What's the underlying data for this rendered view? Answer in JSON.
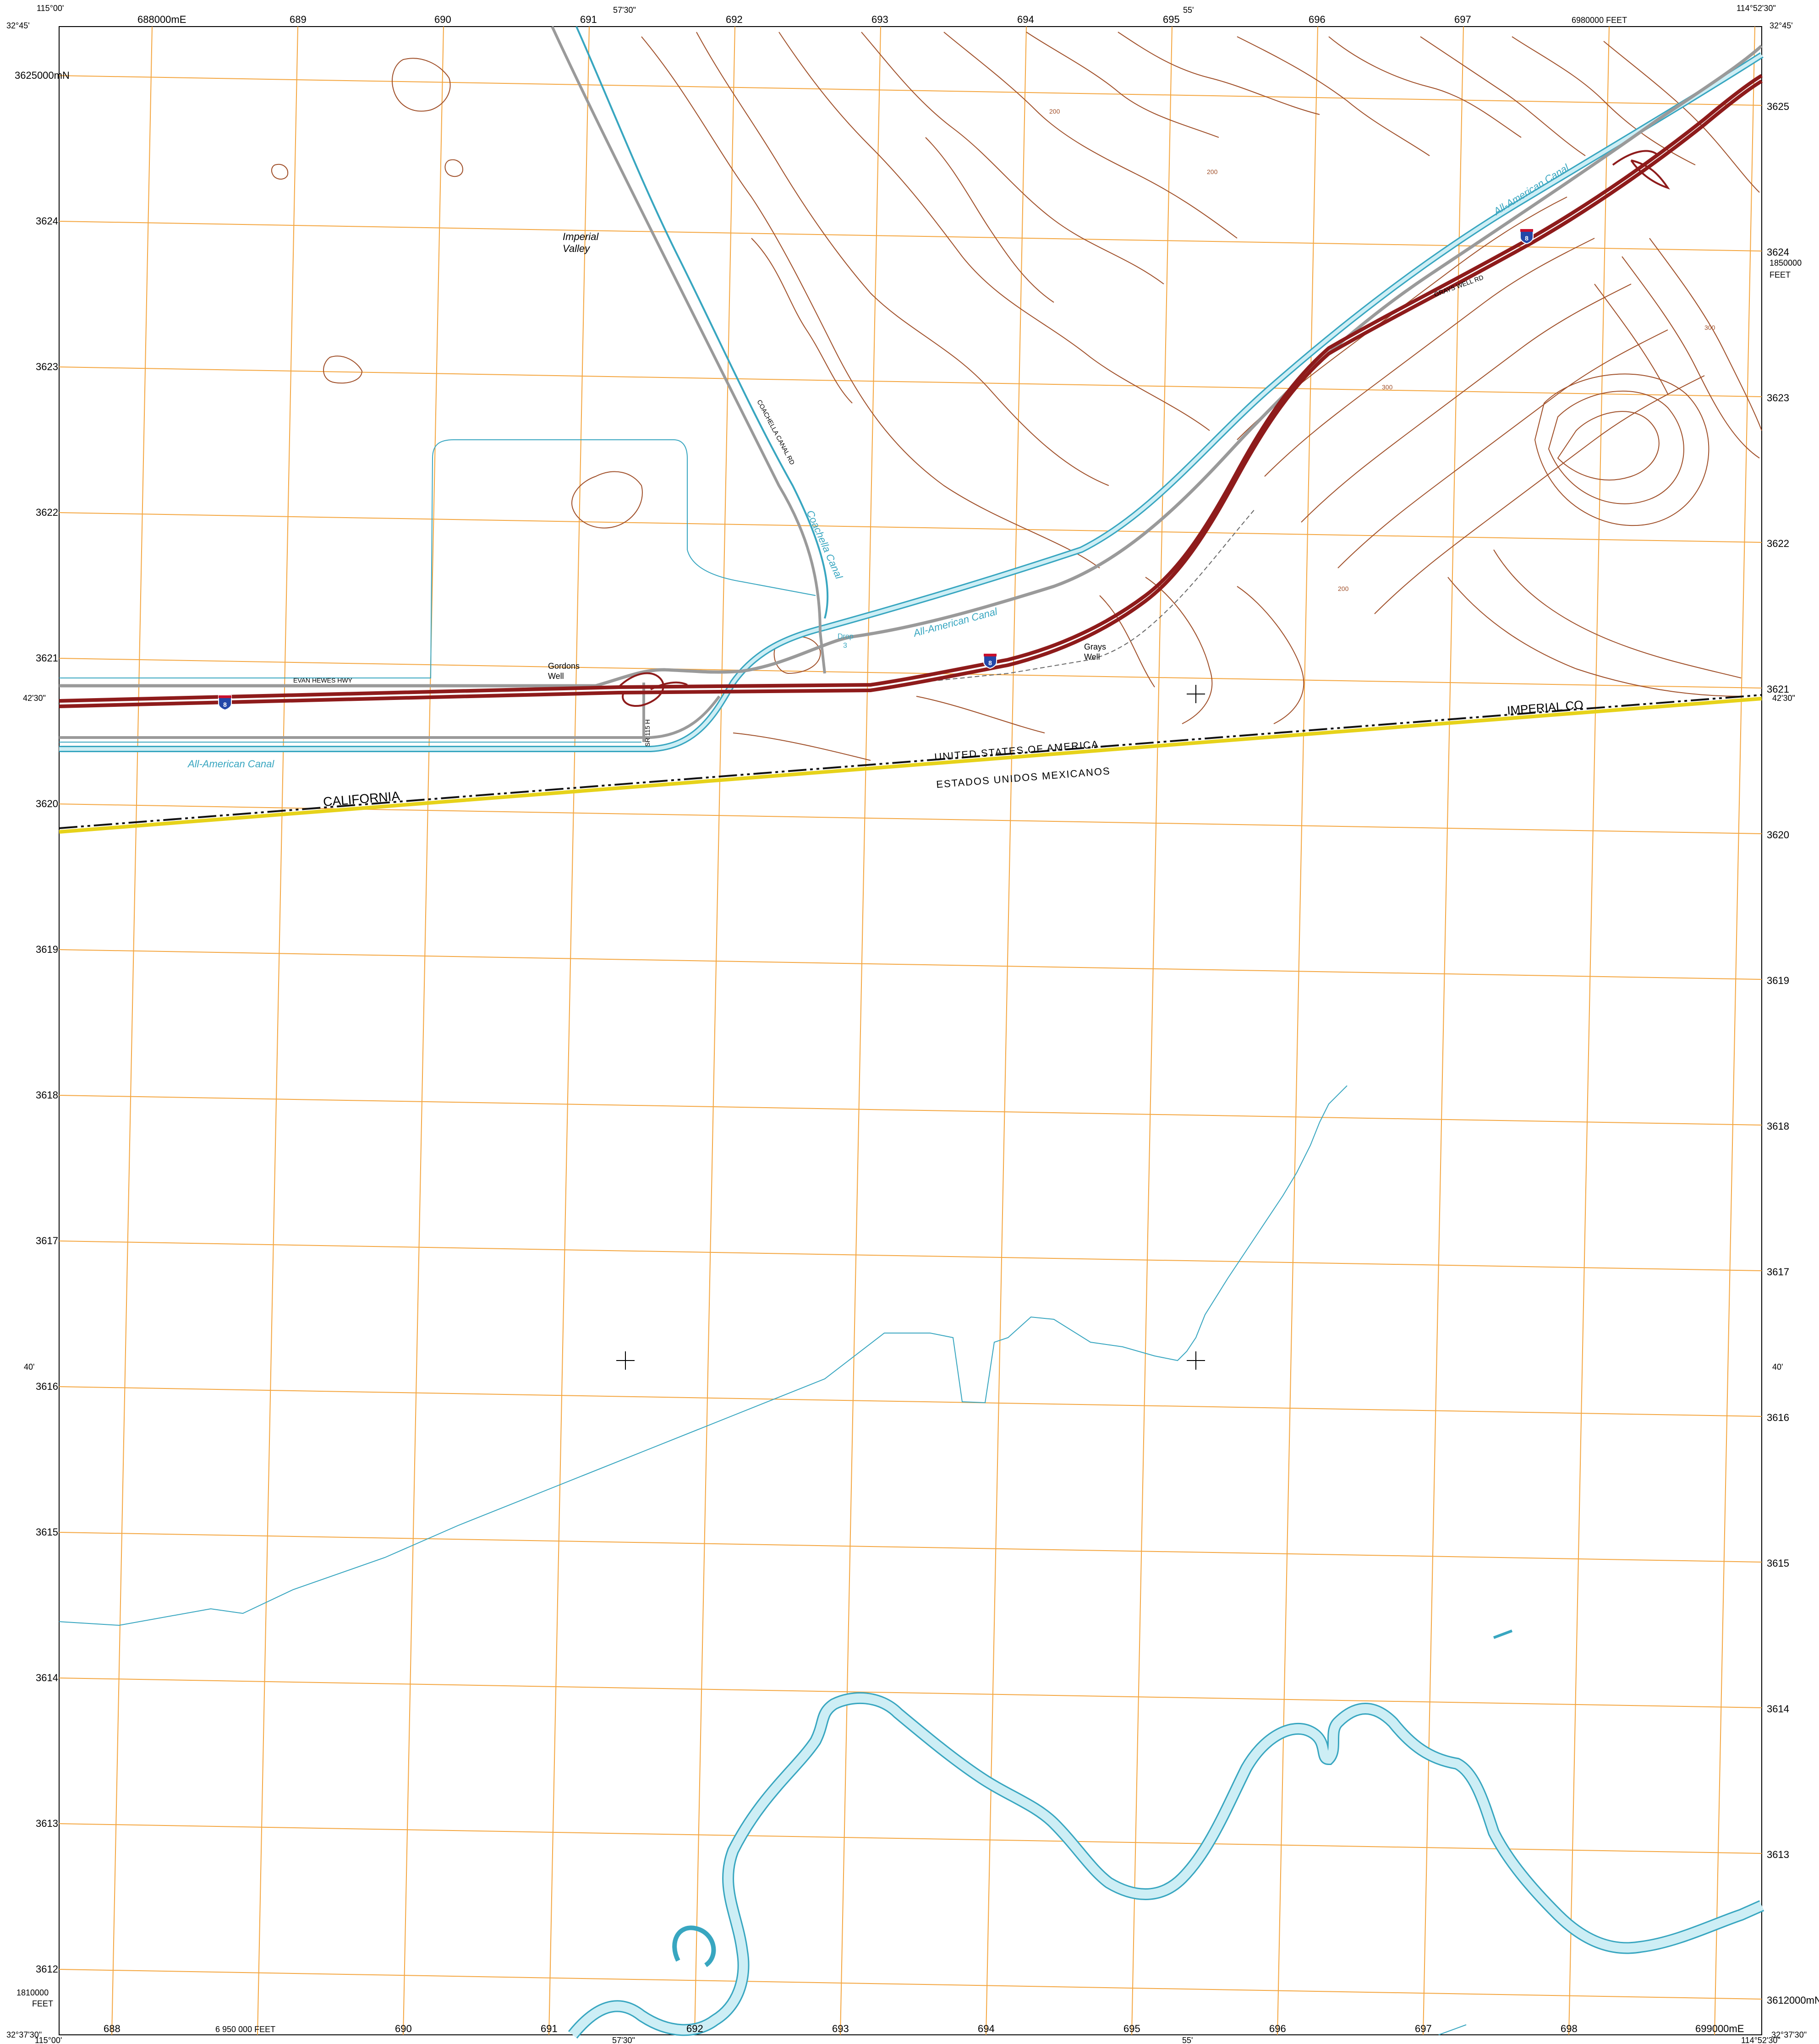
{
  "colors": {
    "paper": "#ffffff",
    "grid": "#f4a640",
    "contour": "#a0502a",
    "water": "#38a6c0",
    "water_fill": "#cdeef5",
    "interstate": "#8e1b1b",
    "road": "#9a9a9a",
    "boundary": "#111111",
    "boundary_yellow": "#e6d21a"
  },
  "corners": {
    "top_left_lon": "115°00'",
    "top_left_lat": "32°45'",
    "top_right_lon": "114°52'30\"",
    "top_right_lat": "32°45'",
    "bottom_left_lon": "115°00'",
    "bottom_left_lat": "32°37'30\"",
    "bottom_right_lon": "114°52'30\"",
    "bottom_right_lat": "32°37'30\""
  },
  "top_edge": {
    "easting_labels": [
      "688000mE",
      "689",
      "690",
      "691",
      "692",
      "693",
      "694",
      "695",
      "696",
      "697"
    ],
    "minute_mid": "57'30\"",
    "minute_55": "55'",
    "feet_label": "6980000 FEET"
  },
  "bottom_edge": {
    "easting_labels": [
      "688",
      "690",
      "691",
      "692",
      "693",
      "694",
      "695",
      "696",
      "697",
      "698",
      "699000mE"
    ],
    "feet_label": "6 950 000 FEET",
    "minute_mid": "57'30\"",
    "minute_55": "55'"
  },
  "left_edge": {
    "northing_labels": [
      "3625000mN",
      "3624",
      "3623",
      "3622",
      "3621",
      "3620",
      "3619",
      "3618",
      "3617",
      "3616",
      "3615",
      "3614",
      "3613",
      "3612"
    ],
    "minute_4230": "42'30\"",
    "minute_40": "40'",
    "feet_label": "1810000",
    "feet_unit": "FEET"
  },
  "right_edge": {
    "northing_labels": [
      "3625",
      "3624",
      "3623",
      "3622",
      "3621",
      "3620",
      "3619",
      "3618",
      "3617",
      "3616",
      "3615",
      "3614",
      "3613",
      "3612000mN"
    ],
    "minute_4230": "42'30\"",
    "minute_40": "40'",
    "feet_label": "1850000",
    "feet_unit": "FEET"
  },
  "labels": {
    "imperial_valley_1": "Imperial",
    "imperial_valley_2": "Valley",
    "gordons_well_1": "Gordons",
    "gordons_well_2": "Well",
    "grays_well_1": "Grays",
    "grays_well_2": "Well",
    "drop": "Drop",
    "drop_num": "3",
    "all_american_canal": "All-American Canal",
    "coachella_canal": "Coachella Canal",
    "coachella_canal_rd": "COACHELLA CANAL RD",
    "evan_hewes_hwy": "EVAN HEWES HWY",
    "grays_well_rd": "GRAYS WELL RD",
    "state_route": "SR 115 H",
    "interstate": "8",
    "california": "CALIFORNIA",
    "imperial_co": "IMPERIAL CO",
    "usa": "UNITED STATES OF AMERICA",
    "mexico": "ESTADOS UNIDOS MEXICANOS",
    "contour_200": "200",
    "contour_300": "300"
  }
}
